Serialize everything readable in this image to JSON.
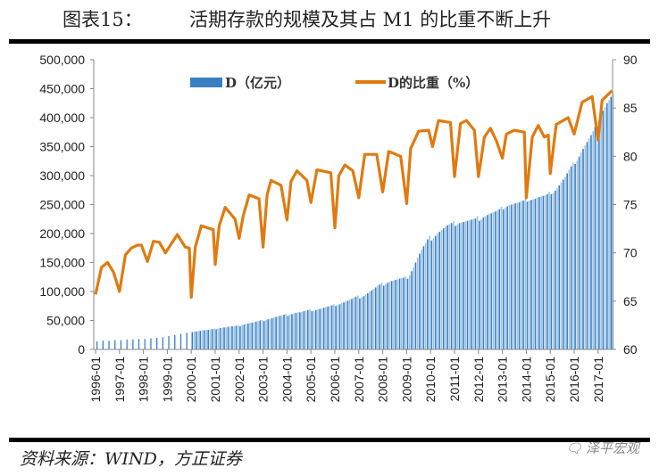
{
  "header": {
    "figure_number": "图表15：",
    "title": "活期存款的规模及其占 M1 的比重不断上升"
  },
  "footer": {
    "source": "资料来源：WIND，方正证券",
    "watermark": "泽平宏观"
  },
  "colors": {
    "bars": "#3a7fc1",
    "bars_light": "#9cc3e5",
    "line": "#e07a10"
  },
  "chart_data": {
    "type": "bar+line",
    "title": "",
    "legend_position": "top",
    "grid": false,
    "y_left": {
      "range": [
        0,
        500000
      ],
      "ticks": [
        "0",
        "50,000",
        "100,000",
        "150,000",
        "200,000",
        "250,000",
        "300,000",
        "350,000",
        "400,000",
        "450,000",
        "500,000"
      ]
    },
    "y_right": {
      "range": [
        60,
        90
      ],
      "ticks": [
        "60",
        "65",
        "70",
        "75",
        "80",
        "85",
        "90"
      ]
    },
    "x_ticks": [
      "1996-01",
      "1997-01",
      "1998-01",
      "1999-01",
      "2000-01",
      "2001-01",
      "2002-01",
      "2003-01",
      "2004-01",
      "2005-01",
      "2006-01",
      "2007-01",
      "2008-01",
      "2009-01",
      "2010-01",
      "2011-01",
      "2012-01",
      "2013-01",
      "2014-01",
      "2015-01",
      "2016-01",
      "2017-01"
    ],
    "series": [
      {
        "name": "D（亿元）",
        "type": "bar",
        "axis": "left",
        "quarterly_1996_1999": {
          "dates": [
            "1996-01",
            "1996-04",
            "1996-07",
            "1996-10",
            "1997-01",
            "1997-04",
            "1997-07",
            "1997-10",
            "1998-01",
            "1998-04",
            "1998-07",
            "1998-10",
            "1999-01",
            "1999-04",
            "1999-07",
            "1999-10"
          ],
          "values": [
            14000,
            15000,
            15000,
            16000,
            16000,
            17000,
            17000,
            18000,
            18000,
            19000,
            20000,
            21000,
            23000,
            25000,
            27000,
            29000
          ]
        },
        "monthly_from_2000_01": [
          30000,
          31000,
          31000,
          32000,
          32000,
          33000,
          33000,
          34000,
          34000,
          35000,
          35000,
          36000,
          35000,
          36000,
          37000,
          37000,
          38000,
          38000,
          39000,
          39000,
          40000,
          40000,
          41000,
          42000,
          40000,
          42000,
          43000,
          44000,
          45000,
          46000,
          46000,
          47000,
          48000,
          49000,
          50000,
          51000,
          49000,
          51000,
          52000,
          53000,
          54000,
          55000,
          56000,
          57000,
          58000,
          59000,
          60000,
          61000,
          58000,
          60000,
          61000,
          62000,
          63000,
          64000,
          64000,
          65000,
          66000,
          67000,
          68000,
          69000,
          66000,
          67000,
          68000,
          69000,
          70000,
          71000,
          72000,
          73000,
          74000,
          75000,
          76000,
          78000,
          75000,
          77000,
          78000,
          80000,
          81000,
          83000,
          84000,
          86000,
          87000,
          89000,
          91000,
          93000,
          88000,
          90000,
          92000,
          95000,
          97000,
          100000,
          102000,
          105000,
          107000,
          110000,
          112000,
          115000,
          110000,
          113000,
          115000,
          117000,
          118000,
          119000,
          120000,
          121000,
          122000,
          123000,
          124000,
          126000,
          122000,
          128000,
          135000,
          142000,
          150000,
          158000,
          165000,
          172000,
          178000,
          184000,
          190000,
          196000,
          188000,
          192000,
          196000,
          200000,
          203000,
          206000,
          209000,
          212000,
          214000,
          216000,
          218000,
          221000,
          213000,
          216000,
          218000,
          219000,
          220000,
          221000,
          222000,
          223000,
          224000,
          225000,
          226000,
          230000,
          222000,
          225000,
          228000,
          230000,
          232000,
          234000,
          235000,
          237000,
          238000,
          240000,
          242000,
          246000,
          242000,
          245000,
          247000,
          249000,
          250000,
          251000,
          252000,
          253000,
          254000,
          256000,
          257000,
          260000,
          255000,
          257000,
          258000,
          259000,
          260000,
          262000,
          263000,
          264000,
          265000,
          266000,
          268000,
          272000,
          268000,
          270000,
          274000,
          278000,
          283000,
          288000,
          293000,
          298000,
          304000,
          310000,
          316000,
          322000,
          320000,
          326000,
          333000,
          340000,
          346000,
          352000,
          358000,
          364000,
          370000,
          377000,
          384000,
          392000,
          395000,
          405000,
          412000,
          418000,
          425000,
          430000,
          436000,
          442000
        ]
      },
      {
        "name": "D的比重（%）",
        "type": "line",
        "axis": "right",
        "points": [
          [
            "1996-01",
            65.7
          ],
          [
            "1996-04",
            68.5
          ],
          [
            "1996-07",
            69
          ],
          [
            "1996-10",
            68
          ],
          [
            "1997-01",
            66
          ],
          [
            "1997-04",
            69.8
          ],
          [
            "1997-07",
            70.5
          ],
          [
            "1997-10",
            70.8
          ],
          [
            "1997-12",
            70.8
          ],
          [
            "1998-03",
            69.1
          ],
          [
            "1998-06",
            71.2
          ],
          [
            "1998-09",
            71.1
          ],
          [
            "1998-12",
            70
          ],
          [
            "1999-06",
            71.9
          ],
          [
            "1999-10",
            70.6
          ],
          [
            "1999-12",
            70.5
          ],
          [
            "2000-01",
            65.4
          ],
          [
            "2000-03",
            70.6
          ],
          [
            "2000-06",
            72.8
          ],
          [
            "2000-12",
            72.4
          ],
          [
            "2001-01",
            68.8
          ],
          [
            "2001-03",
            72.8
          ],
          [
            "2001-06",
            74.7
          ],
          [
            "2001-11",
            73.5
          ],
          [
            "2002-01",
            71.5
          ],
          [
            "2002-03",
            73.8
          ],
          [
            "2002-06",
            76
          ],
          [
            "2002-11",
            75.6
          ],
          [
            "2003-01",
            70.6
          ],
          [
            "2003-03",
            76
          ],
          [
            "2003-05",
            77.5
          ],
          [
            "2003-10",
            77
          ],
          [
            "2004-01",
            73.4
          ],
          [
            "2004-03",
            77.4
          ],
          [
            "2004-06",
            78.5
          ],
          [
            "2004-11",
            77.5
          ],
          [
            "2005-01",
            75.2
          ],
          [
            "2005-04",
            78.6
          ],
          [
            "2005-11",
            78.3
          ],
          [
            "2006-01",
            72.6
          ],
          [
            "2006-03",
            78
          ],
          [
            "2006-06",
            79.1
          ],
          [
            "2006-10",
            78.5
          ],
          [
            "2007-01",
            75.7
          ],
          [
            "2007-04",
            80.2
          ],
          [
            "2007-10",
            80.2
          ],
          [
            "2008-01",
            76.3
          ],
          [
            "2008-04",
            80.5
          ],
          [
            "2008-10",
            80
          ],
          [
            "2009-01",
            75.1
          ],
          [
            "2009-03",
            80.8
          ],
          [
            "2009-07",
            82.6
          ],
          [
            "2009-12",
            82.7
          ],
          [
            "2010-02",
            81
          ],
          [
            "2010-05",
            83.7
          ],
          [
            "2010-11",
            83.5
          ],
          [
            "2011-01",
            77.9
          ],
          [
            "2011-04",
            83.4
          ],
          [
            "2011-07",
            83.7
          ],
          [
            "2011-11",
            82.7
          ],
          [
            "2012-01",
            77.9
          ],
          [
            "2012-04",
            82
          ],
          [
            "2012-07",
            82.9
          ],
          [
            "2012-10",
            81.6
          ],
          [
            "2013-01",
            79.8
          ],
          [
            "2013-03",
            82.3
          ],
          [
            "2013-07",
            82.7
          ],
          [
            "2013-12",
            82.5
          ],
          [
            "2014-01",
            75.7
          ],
          [
            "2014-04",
            82
          ],
          [
            "2014-07",
            83.2
          ],
          [
            "2014-10",
            82
          ],
          [
            "2014-12",
            82.2
          ],
          [
            "2015-01",
            78.2
          ],
          [
            "2015-04",
            83.3
          ],
          [
            "2015-10",
            84
          ],
          [
            "2016-01",
            82.3
          ],
          [
            "2016-05",
            85.6
          ],
          [
            "2016-10",
            86.2
          ],
          [
            "2017-01",
            81.7
          ],
          [
            "2017-03",
            85.8
          ],
          [
            "2017-08",
            86.8
          ]
        ]
      }
    ]
  }
}
